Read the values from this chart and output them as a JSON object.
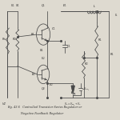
{
  "title1": "Fig. 43.6   Controlled Transistor Series Regulator or",
  "title2": "               Negative Feedback Regulator",
  "bg_color": "#dedad0",
  "line_color": "#4a4a4a",
  "text_color": "#2a2a2a",
  "figsize": [
    1.5,
    1.5
  ],
  "dpi": 100
}
